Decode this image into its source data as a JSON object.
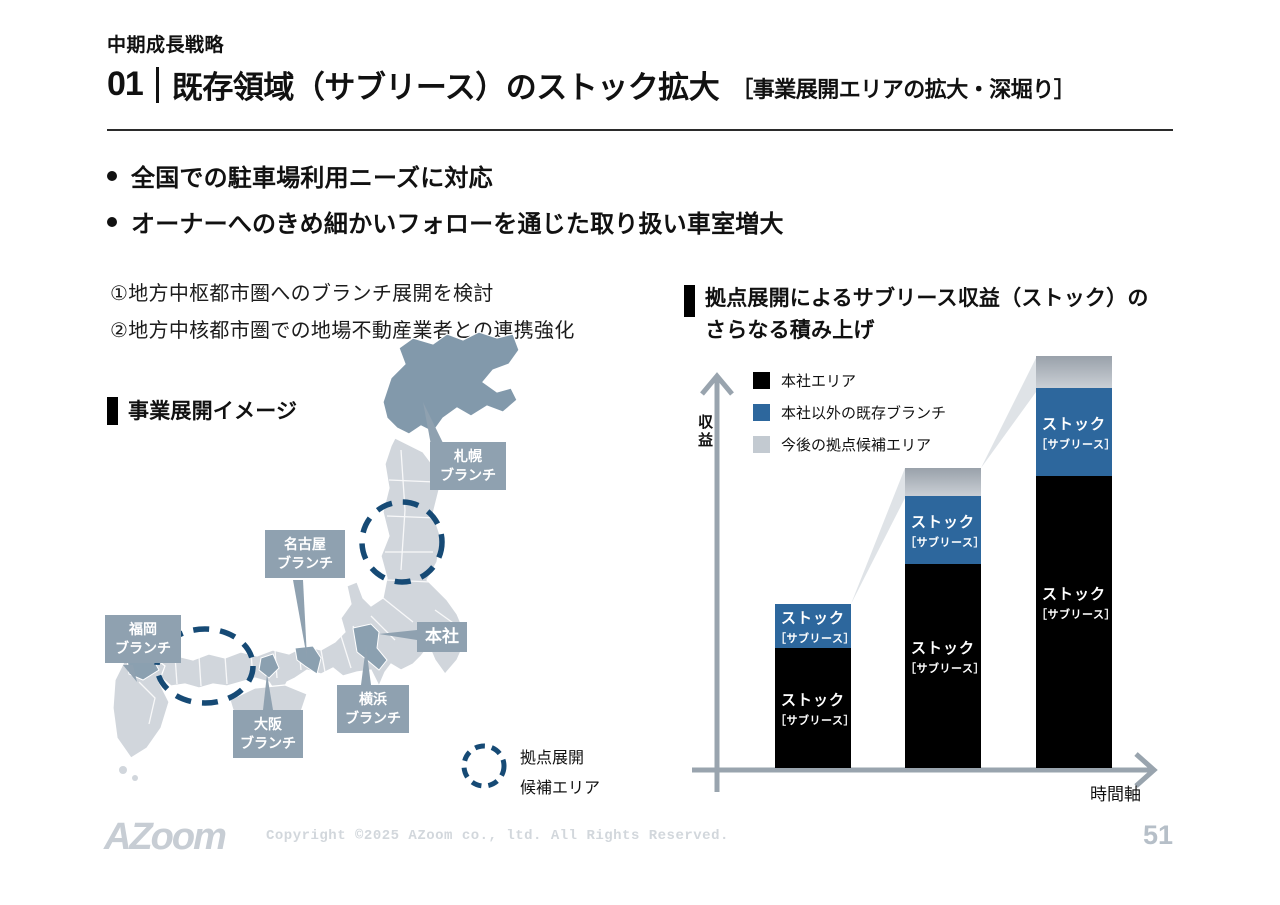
{
  "slide": {
    "eyebrow": "中期成長戦略",
    "title_no": "01",
    "title": "既存領域（サブリース）のストック拡大",
    "title_bracket": "［事業展開エリアの拡大・深堀り］",
    "logo_text": "AZoom",
    "copyright": "Copyright ©2025 AZoom co., ltd. All Rights Reserved.",
    "page_number": "51"
  },
  "bullets": [
    "全国での駐車場利用ニーズに対応",
    "オーナーへのきめ細かいフォローを通じた取り扱い車室増大"
  ],
  "points": [
    "①地方中枢都市圏へのブランチ展開を検討",
    "②地方中核都市圏での地場不動産業者との連携強化"
  ],
  "map_section": {
    "heading": "事業展開イメージ",
    "branches": [
      {
        "id": "sapporo",
        "line1": "札幌",
        "line2": "ブランチ"
      },
      {
        "id": "nagoya",
        "line1": "名古屋",
        "line2": "ブランチ"
      },
      {
        "id": "fukuoka",
        "line1": "福岡",
        "line2": "ブランチ"
      },
      {
        "id": "osaka",
        "line1": "大阪",
        "line2": "ブランチ"
      },
      {
        "id": "yokohama",
        "line1": "横浜",
        "line2": "ブランチ"
      },
      {
        "id": "honsha",
        "line1": "本社",
        "line2": ""
      }
    ],
    "legend": {
      "line1": "拠点展開",
      "line2": "候補エリア"
    }
  },
  "chart_section": {
    "heading_line1": "拠点展開によるサブリース収益（ストック）の",
    "heading_line2": "さらなる積み上げ"
  },
  "chart_data": {
    "type": "bar",
    "stacked": true,
    "orientation": "vertical",
    "title": "拠点展開によるサブリース収益（ストック）のさらなる積み上げ",
    "xlabel": "時間軸",
    "ylabel": "収益",
    "axis_numeric_labels": false,
    "legend_position": "top-left",
    "categories": [
      "",
      "",
      ""
    ],
    "series": [
      {
        "name": "本社エリア",
        "color": "#000000",
        "values": [
          30,
          51,
          73
        ]
      },
      {
        "name": "本社以外の既存ブランチ",
        "color": "#2d679d",
        "values": [
          11,
          17,
          22
        ]
      },
      {
        "name": "今後の拠点候補エリア",
        "color": "#c3cad1",
        "values": [
          0,
          7,
          8
        ]
      }
    ],
    "segment_label": {
      "line1": "ストック",
      "line2": "［サブリース］"
    },
    "unit": "conceptual (no numeric scale shown)"
  },
  "colors": {
    "accent_navy_dashed": "#164a75",
    "branch_label_box": "#8fa1b0",
    "map_base": "#d1d6dc",
    "map_highlight": "#8ba0b0",
    "hokkaido": "#8299ab",
    "axis_gray": "#99a4ae",
    "connector_wedge": "#dfe3e7"
  }
}
